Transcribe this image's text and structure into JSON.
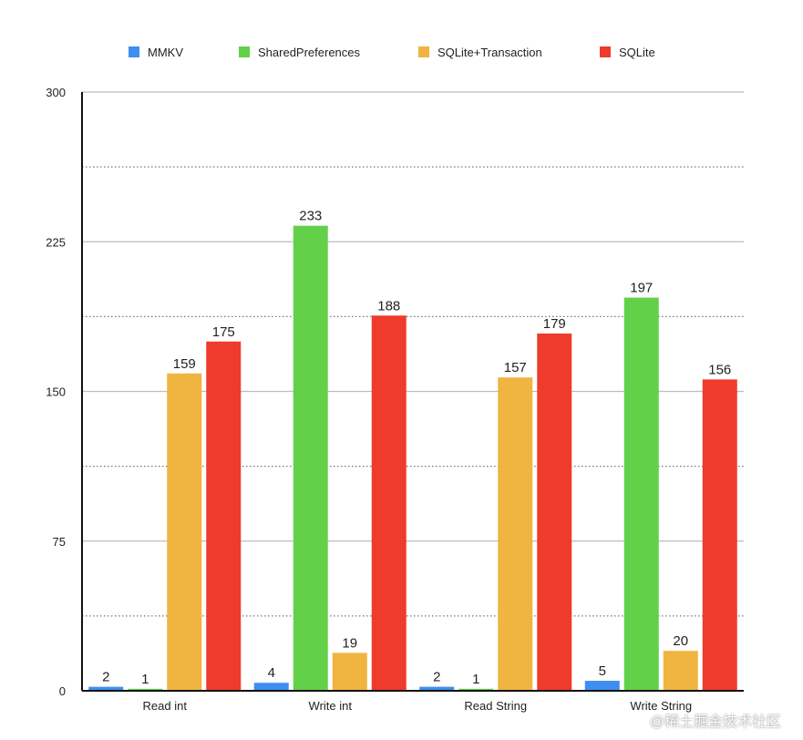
{
  "chart_data": {
    "type": "bar",
    "categories": [
      "Read int",
      "Write int",
      "Read String",
      "Write String"
    ],
    "series": [
      {
        "name": "MMKV",
        "color": "#3d8ef0",
        "values": [
          2,
          4,
          2,
          5
        ]
      },
      {
        "name": "SharedPreferences",
        "color": "#63d04a",
        "values": [
          1,
          233,
          1,
          197
        ]
      },
      {
        "name": "SQLite+Transaction",
        "color": "#f0b440",
        "values": [
          159,
          19,
          157,
          20
        ]
      },
      {
        "name": "SQLite",
        "color": "#ee3b2c",
        "values": [
          175,
          188,
          179,
          156
        ]
      }
    ],
    "ylim": [
      0,
      300
    ],
    "yticks": [
      0,
      75,
      150,
      225,
      300
    ],
    "grid": true,
    "legend": "top",
    "title": "",
    "xlabel": "",
    "ylabel": ""
  },
  "watermark": "@稀土掘金技术社区"
}
